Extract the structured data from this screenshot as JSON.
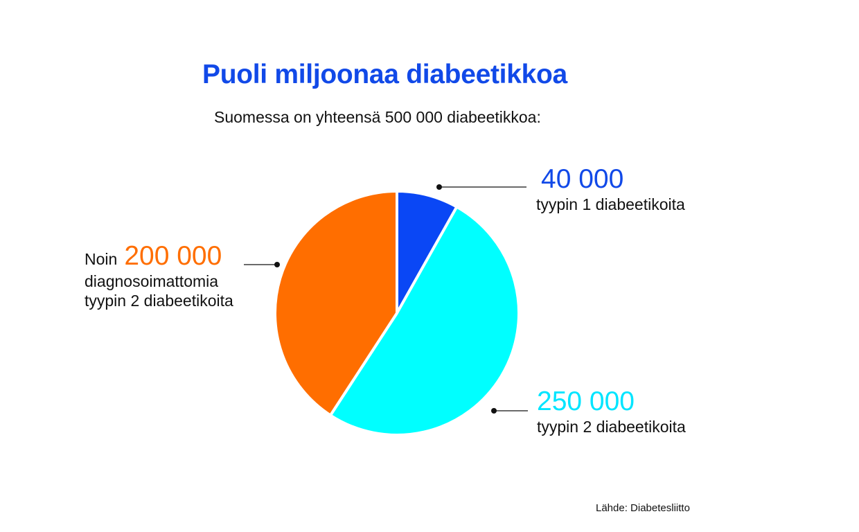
{
  "title": "Puoli miljoonaa diabeetikkoa",
  "subtitle": "Suomessa on yhteensä 500 000 diabeetikkoa:",
  "source": "Lähde: Diabetesliitto",
  "labels": {
    "type1_value": "40 000",
    "type1_desc": "tyypin 1 diabeetikoita",
    "undiag_prefix": "Noin",
    "undiag_value": "200 000",
    "undiag_desc1": "diagnosoimattomia",
    "undiag_desc2": "tyypin 2 diabeetikoita",
    "type2_value": "250 000",
    "type2_desc": "tyypin 2 diabeetikoita"
  },
  "chart_data": {
    "type": "pie",
    "title": "Puoli miljoonaa diabeetikkoa",
    "subtitle": "Suomessa on yhteensä 500 000 diabeetikkoa:",
    "total": 500000,
    "slices": [
      {
        "name": "tyypin 1 diabeetikoita",
        "value": 40000,
        "color": "#0a47f5"
      },
      {
        "name": "tyypin 2 diabeetikoita",
        "value": 250000,
        "color": "#00ffff"
      },
      {
        "name": "diagnosoimattomia tyypin 2 diabeetikoita",
        "value": 200000,
        "color": "#ff6e00"
      }
    ],
    "start": "top",
    "direction": "clockwise"
  },
  "colors": {
    "title": "#1149e8",
    "type1": "#1149e8",
    "undiag": "#ff6e00",
    "type2": "#00ffff",
    "leader": "#111111"
  }
}
